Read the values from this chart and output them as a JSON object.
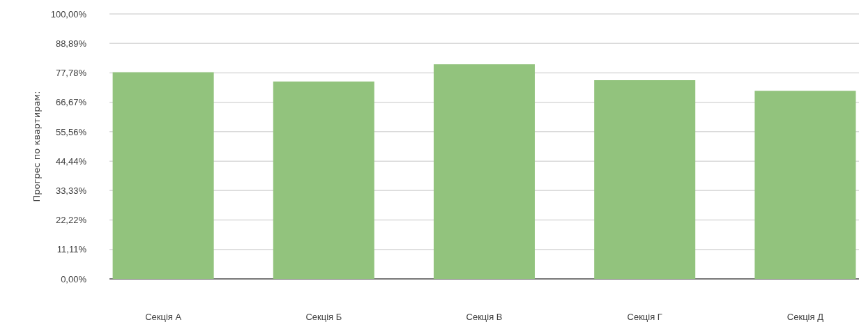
{
  "chart_data": {
    "type": "bar",
    "ylabel": "Прогрес по квартирам:",
    "categories": [
      "Секція А",
      "Секція Б",
      "Секція В",
      "Секція Г",
      "Секція Д"
    ],
    "values": [
      78,
      74.5,
      81,
      75,
      71
    ],
    "color": "#92c37d",
    "ylim": [
      0,
      100
    ],
    "yticks": [
      {
        "value": 0,
        "label": "0,00%"
      },
      {
        "value": 11.11,
        "label": "11,11%"
      },
      {
        "value": 22.22,
        "label": "22,22%"
      },
      {
        "value": 33.33,
        "label": "33,33%"
      },
      {
        "value": 44.44,
        "label": "44,44%"
      },
      {
        "value": 55.56,
        "label": "55,56%"
      },
      {
        "value": 66.67,
        "label": "66,67%"
      },
      {
        "value": 77.78,
        "label": "77,78%"
      },
      {
        "value": 88.89,
        "label": "88,89%"
      },
      {
        "value": 100,
        "label": "100,00%"
      }
    ],
    "grid": "y"
  }
}
